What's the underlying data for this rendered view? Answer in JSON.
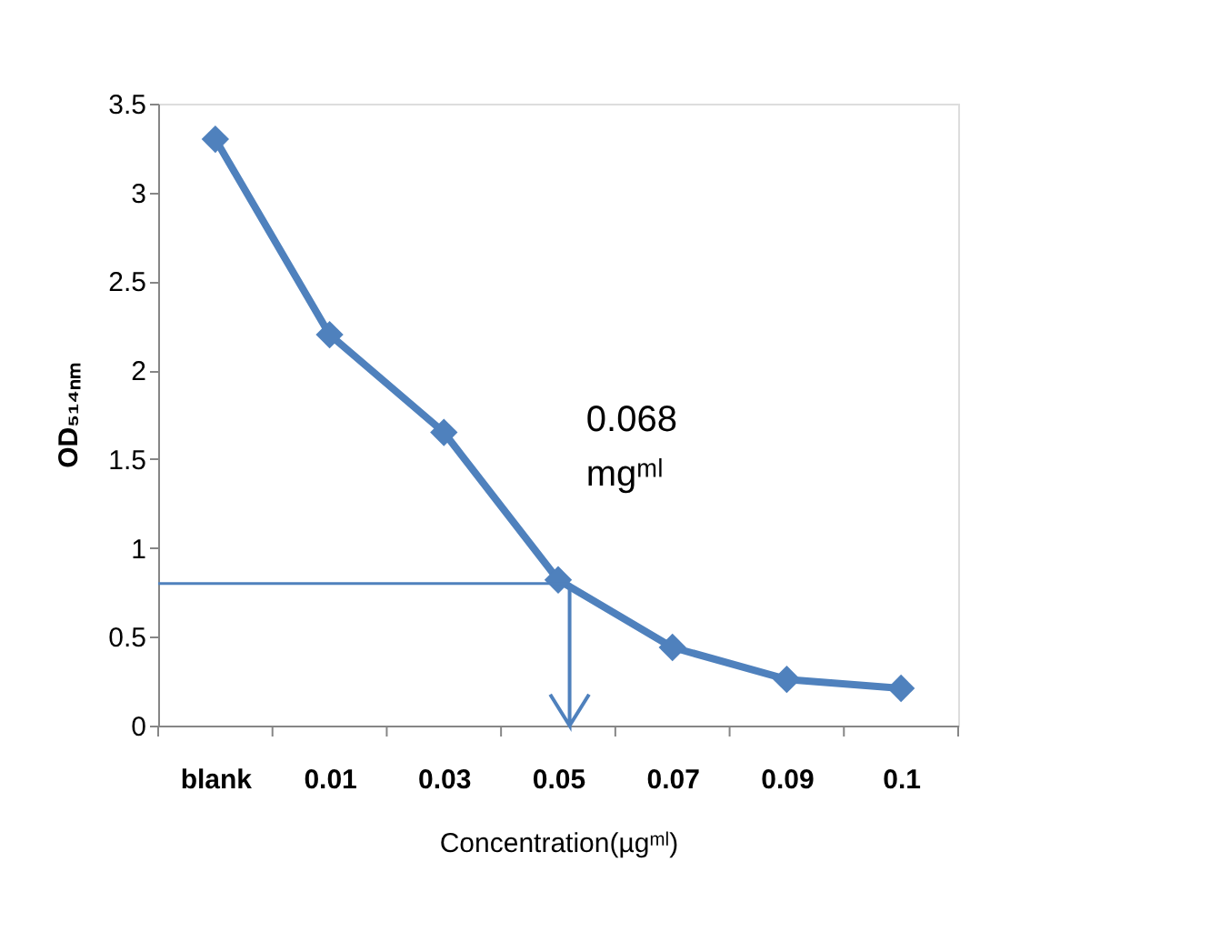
{
  "chart_data": {
    "type": "line",
    "categories": [
      "blank",
      "0.01",
      "0.03",
      "0.05",
      "0.07",
      "0.09",
      "0.1"
    ],
    "series": [
      {
        "color": "#4f81bd",
        "values": [
          3.3,
          2.2,
          1.65,
          0.82,
          0.44,
          0.26,
          0.21
        ]
      }
    ],
    "ylim": [
      0,
      3.5
    ],
    "yticks": [
      0,
      0.5,
      1,
      1.5,
      2,
      2.5,
      3,
      3.5
    ],
    "xlabel": "Concentration(µgᵐˡ)",
    "ylabel": "OD₅₁₄ₙₘ",
    "annotations": [
      "0.068 mgᵐˡ"
    ],
    "ref_lines": [
      {
        "axis": "y",
        "value": 0.8,
        "label": null,
        "color": "#4f81bd"
      },
      {
        "axis": "x",
        "value": "0.05",
        "label": null,
        "color": "#4f81bd"
      }
    ],
    "marker": "diamond",
    "line_style": "solid",
    "grid": false,
    "legend": false
  }
}
